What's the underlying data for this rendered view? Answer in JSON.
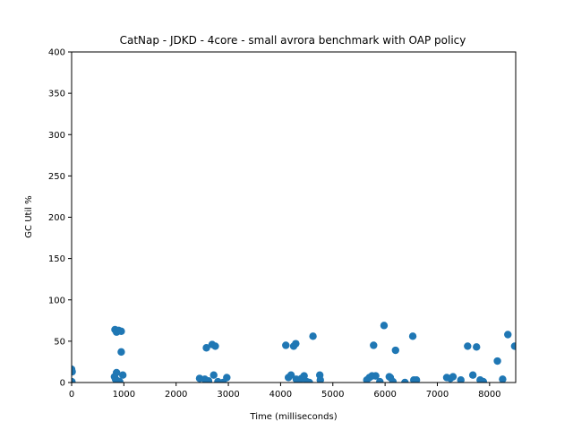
{
  "chart_data": {
    "type": "scatter",
    "title": "CatNap - JDKD - 4core -  small avrora benchmark with OAP policy",
    "xlabel": "Time (milliseconds)",
    "ylabel": "GC Util %",
    "xlim": [
      0,
      8500
    ],
    "ylim": [
      0,
      400
    ],
    "xticks": [
      0,
      1000,
      2000,
      3000,
      4000,
      5000,
      6000,
      7000,
      8000
    ],
    "yticks": [
      0,
      50,
      100,
      150,
      200,
      250,
      300,
      350,
      400
    ],
    "grid": false,
    "marker_color": "#1f77b4",
    "points": [
      {
        "x": 0,
        "y": 16
      },
      {
        "x": 10,
        "y": 13
      },
      {
        "x": 5,
        "y": 1
      },
      {
        "x": 830,
        "y": 64
      },
      {
        "x": 860,
        "y": 61
      },
      {
        "x": 900,
        "y": 63
      },
      {
        "x": 950,
        "y": 62
      },
      {
        "x": 950,
        "y": 37
      },
      {
        "x": 860,
        "y": 12
      },
      {
        "x": 980,
        "y": 9
      },
      {
        "x": 820,
        "y": 7
      },
      {
        "x": 840,
        "y": 4
      },
      {
        "x": 880,
        "y": 2
      },
      {
        "x": 920,
        "y": 1
      },
      {
        "x": 2450,
        "y": 5
      },
      {
        "x": 2550,
        "y": 4
      },
      {
        "x": 2620,
        "y": 2
      },
      {
        "x": 2580,
        "y": 42
      },
      {
        "x": 2690,
        "y": 46
      },
      {
        "x": 2750,
        "y": 44
      },
      {
        "x": 2720,
        "y": 9
      },
      {
        "x": 2800,
        "y": 1
      },
      {
        "x": 2900,
        "y": 0
      },
      {
        "x": 2970,
        "y": 6
      },
      {
        "x": 4100,
        "y": 45
      },
      {
        "x": 4250,
        "y": 44
      },
      {
        "x": 4290,
        "y": 47
      },
      {
        "x": 4150,
        "y": 6
      },
      {
        "x": 4200,
        "y": 9
      },
      {
        "x": 4300,
        "y": 4
      },
      {
        "x": 4350,
        "y": 2
      },
      {
        "x": 4400,
        "y": 5
      },
      {
        "x": 4450,
        "y": 8
      },
      {
        "x": 4500,
        "y": 1
      },
      {
        "x": 4550,
        "y": 0
      },
      {
        "x": 4620,
        "y": 56
      },
      {
        "x": 4750,
        "y": 9
      },
      {
        "x": 4760,
        "y": 3
      },
      {
        "x": 5650,
        "y": 3
      },
      {
        "x": 5700,
        "y": 6
      },
      {
        "x": 5750,
        "y": 8
      },
      {
        "x": 5780,
        "y": 45
      },
      {
        "x": 5820,
        "y": 8
      },
      {
        "x": 5900,
        "y": 1
      },
      {
        "x": 5980,
        "y": 69
      },
      {
        "x": 6080,
        "y": 7
      },
      {
        "x": 6100,
        "y": 6
      },
      {
        "x": 6150,
        "y": 1
      },
      {
        "x": 6200,
        "y": 39
      },
      {
        "x": 6380,
        "y": 0
      },
      {
        "x": 6530,
        "y": 56
      },
      {
        "x": 6550,
        "y": 3
      },
      {
        "x": 6600,
        "y": 3
      },
      {
        "x": 7180,
        "y": 6
      },
      {
        "x": 7250,
        "y": 5
      },
      {
        "x": 7300,
        "y": 7
      },
      {
        "x": 7450,
        "y": 3
      },
      {
        "x": 7580,
        "y": 44
      },
      {
        "x": 7680,
        "y": 9
      },
      {
        "x": 7750,
        "y": 43
      },
      {
        "x": 7820,
        "y": 3
      },
      {
        "x": 7880,
        "y": 1
      },
      {
        "x": 8150,
        "y": 26
      },
      {
        "x": 8250,
        "y": 4
      },
      {
        "x": 8350,
        "y": 58
      },
      {
        "x": 8480,
        "y": 44
      }
    ]
  }
}
